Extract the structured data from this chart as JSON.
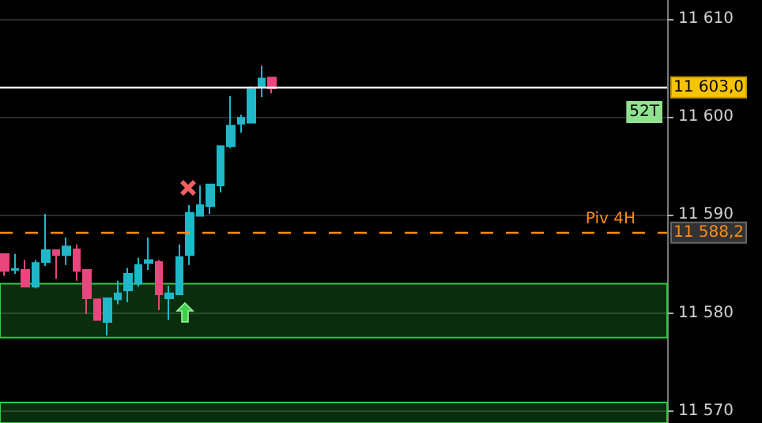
{
  "chart_data": {
    "type": "candlestick",
    "categories": [
      null,
      null,
      null,
      null,
      null,
      null,
      null,
      null,
      null,
      null,
      null,
      null,
      null,
      null,
      null,
      null,
      null,
      null,
      null,
      null,
      null,
      null,
      null,
      null,
      null,
      null,
      null,
      null,
      null,
      null,
      null,
      null,
      null,
      null,
      null,
      null,
      null,
      null,
      null,
      null,
      null,
      null,
      null,
      null,
      null,
      null,
      null,
      null,
      null,
      null,
      null,
      null,
      null,
      null,
      null,
      null,
      null,
      null,
      null,
      null,
      null,
      null,
      null,
      null,
      null
    ],
    "ohlc": [
      [
        11586.0,
        11586.0,
        11583.8,
        11584.3
      ],
      [
        11584.4,
        11586.0,
        11584.0,
        11584.5
      ],
      [
        11584.4,
        11585.4,
        11582.7,
        11582.7
      ],
      [
        11582.7,
        11585.4,
        11582.5,
        11585.1
      ],
      [
        11585.2,
        11590.1,
        11584.8,
        11586.4
      ],
      [
        11586.4,
        11586.4,
        11583.5,
        11585.9
      ],
      [
        11585.9,
        11587.7,
        11584.9,
        11586.8
      ],
      [
        11586.5,
        11587.0,
        11583.3,
        11584.3
      ],
      [
        11584.4,
        11584.4,
        11579.9,
        11581.5
      ],
      [
        11581.4,
        11581.4,
        11579.3,
        11579.3
      ],
      [
        11579.1,
        11581.5,
        11577.7,
        11581.5
      ],
      [
        11581.4,
        11583.3,
        11580.9,
        11582.0
      ],
      [
        11582.3,
        11584.6,
        11581.1,
        11584.0
      ],
      [
        11583.0,
        11585.6,
        11582.7,
        11584.9
      ],
      [
        11585.1,
        11587.7,
        11584.4,
        11585.4
      ],
      [
        11585.2,
        11585.4,
        11580.3,
        11581.9
      ],
      [
        11581.5,
        11582.8,
        11579.3,
        11582.0
      ],
      [
        11581.9,
        11587.0,
        11581.9,
        11585.7
      ],
      [
        11585.9,
        11591.0,
        11584.9,
        11590.2
      ],
      [
        11589.9,
        11593.0,
        11589.9,
        11591.0
      ],
      [
        11590.9,
        11593.1,
        11590.1,
        11593.1
      ],
      [
        11593.0,
        11597.0,
        11592.3,
        11597.0
      ],
      [
        11597.0,
        11602.1,
        11596.8,
        11599.1
      ],
      [
        11599.3,
        11600.2,
        11598.4,
        11599.9
      ],
      [
        11599.4,
        11603.1,
        11599.4,
        11602.8
      ],
      [
        11603.0,
        11605.2,
        11602.0,
        11603.9
      ],
      [
        11604.0,
        11604.0,
        11602.4,
        11602.9
      ],
      null,
      null,
      null,
      null,
      null,
      null,
      null,
      null,
      null,
      null,
      null,
      null,
      null,
      null,
      null,
      null,
      null,
      null,
      null,
      null,
      null,
      null,
      null,
      null,
      null,
      null,
      null,
      null,
      null,
      null,
      null,
      null,
      null,
      null,
      null,
      null,
      null,
      null
    ],
    "colors": [
      "#e8467c",
      "#1fb8c8",
      "#e8467c",
      "#1fb8c8",
      "#1fb8c8",
      "#e8467c",
      "#1fb8c8",
      "#e8467c",
      "#e8467c",
      "#e8467c",
      "#1fb8c8",
      "#1fb8c8",
      "#1fb8c8",
      "#1fb8c8",
      "#1fb8c8",
      "#e8467c",
      "#1fb8c8",
      "#1fb8c8",
      "#1fb8c8",
      "#1fb8c8",
      "#1fb8c8",
      "#1fb8c8",
      "#1fb8c8",
      "#1fb8c8",
      "#1fb8c8",
      "#1fb8c8",
      "#e8467c",
      null,
      null,
      null,
      null,
      null,
      null,
      null,
      null,
      null,
      null,
      null,
      null,
      null,
      null,
      null,
      null,
      null,
      null,
      null,
      null,
      null,
      null,
      null,
      null,
      null,
      null,
      null,
      null,
      null,
      null,
      null,
      null,
      null,
      null,
      null,
      null,
      null,
      null
    ],
    "ylim": [
      11568.8,
      11611.9
    ],
    "yticks": [
      {
        "value": 11570,
        "label": "11 570"
      },
      {
        "value": 11580,
        "label": "11 580"
      },
      {
        "value": 11590,
        "label": "11 590"
      },
      {
        "value": 11600,
        "label": "11 600"
      },
      {
        "value": 11610,
        "label": "11 610"
      }
    ],
    "grid": "y",
    "ref_lines": [
      {
        "axis": "y",
        "value": 11603.0,
        "label": "11 603,0",
        "color": "#ffffff",
        "line_style": "solid"
      },
      {
        "axis": "y",
        "value": 11588.2,
        "label": "11 588,2",
        "color": "#ff8c1a",
        "line_style": "dashed"
      }
    ],
    "bands": [
      {
        "axis": "y",
        "from": 11577.5,
        "to": 11583.0,
        "color": "#2ecc40"
      },
      {
        "axis": "y",
        "from": 11568.8,
        "to": 11570.9,
        "color": "#2ecc40"
      }
    ],
    "annotations": [
      "Piv 4H",
      "52T"
    ]
  }
}
